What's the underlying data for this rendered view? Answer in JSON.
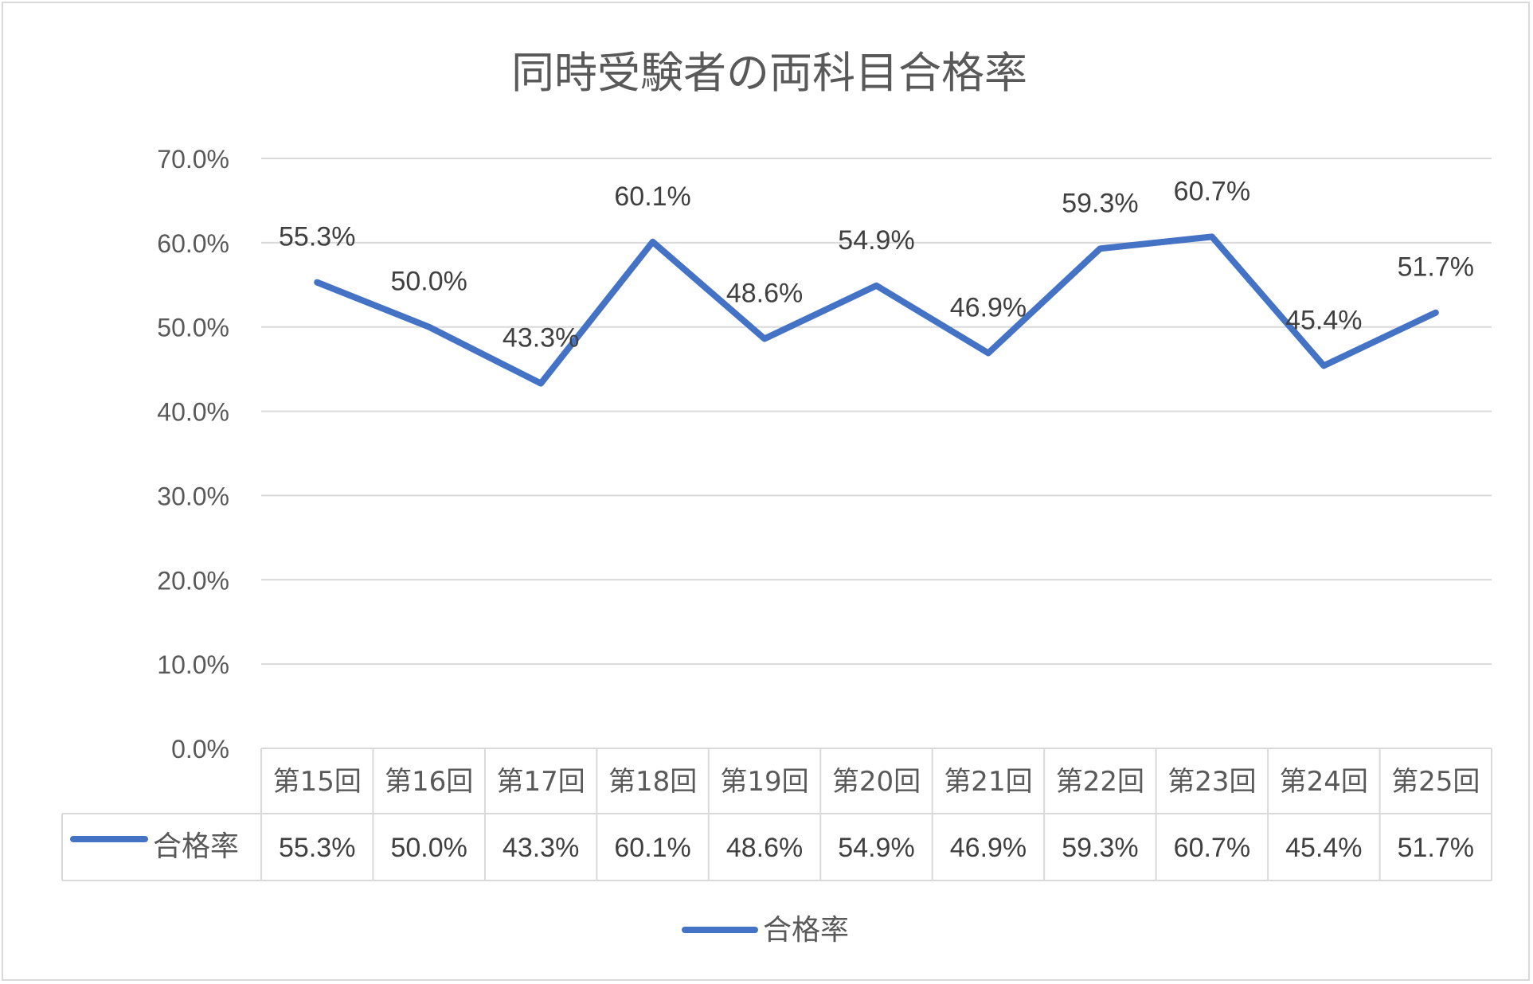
{
  "chart_data": {
    "type": "line",
    "title": "同時受験者の両科目合格率",
    "categories": [
      "第15回",
      "第16回",
      "第17回",
      "第18回",
      "第19回",
      "第20回",
      "第21回",
      "第22回",
      "第23回",
      "第24回",
      "第25回"
    ],
    "series": [
      {
        "name": "合格率",
        "values": [
          55.3,
          50.0,
          43.3,
          60.1,
          48.6,
          54.9,
          46.9,
          59.3,
          60.7,
          45.4,
          51.7
        ],
        "labels": [
          "55.3%",
          "50.0%",
          "43.3%",
          "60.1%",
          "48.6%",
          "54.9%",
          "46.9%",
          "59.3%",
          "60.7%",
          "45.4%",
          "51.7%"
        ],
        "color": "#4472C4"
      }
    ],
    "ylim": [
      0,
      70
    ],
    "yticks": [
      "0.0%",
      "10.0%",
      "20.0%",
      "30.0%",
      "40.0%",
      "50.0%",
      "60.0%",
      "70.0%"
    ],
    "grid": true,
    "data_table": true,
    "legend": "bottom"
  }
}
